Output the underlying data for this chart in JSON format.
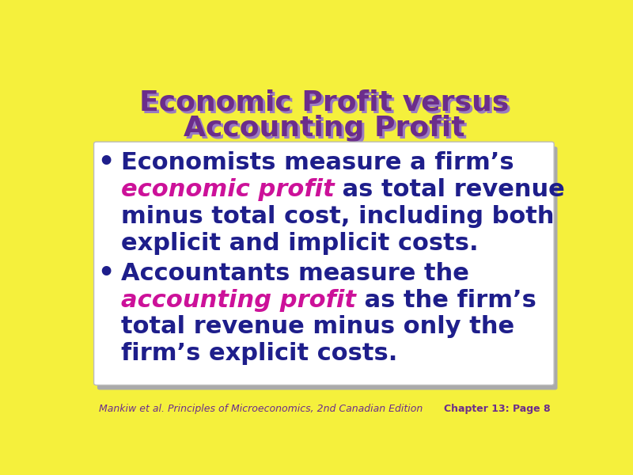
{
  "background_color": "#F5F03C",
  "title_line1": "Economic Profit versus",
  "title_line2": "Accounting Profit",
  "title_color": "#6B2D8B",
  "title_shadow_color": "#9B7BC0",
  "title_fontsize": 26,
  "box_bg_color": "#FFFFFF",
  "box_edge_color": "#BBBBBB",
  "box_shadow_color": "#AAAAAA",
  "bullet_color": "#1E1E8B",
  "highlight_color": "#CC1199",
  "bullet_fontsize": 22,
  "footer_left": "Mankiw et al. Principles of Microeconomics, 2nd Canadian Edition",
  "footer_right": "Chapter 13: Page 8",
  "footer_color": "#6B2D8B",
  "footer_fontsize": 9
}
